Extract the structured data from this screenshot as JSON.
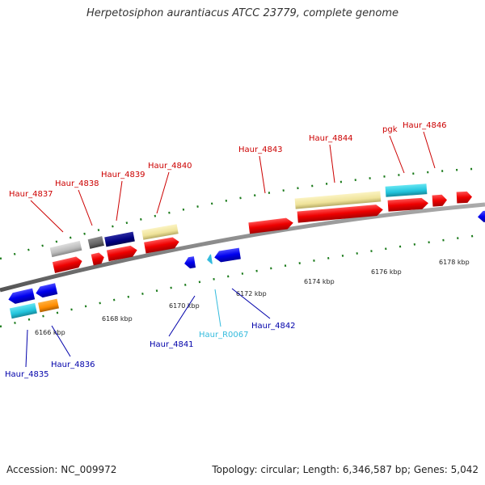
{
  "title": "Herpetosiphon aurantiacus ATCC 23779, complete genome",
  "footer": {
    "accession": "Accession: NC_009972",
    "stats": "Topology: circular; Length: 6,346,587 bp; Genes: 5,042"
  },
  "colors": {
    "forward_label": "#cc0000",
    "reverse_label": "#0000aa",
    "rna_label": "#33bbdd",
    "backbone": "#888888",
    "tick": "#1a7a1a"
  },
  "scale_labels": [
    "6166 kbp",
    "6168 kbp",
    "6170 kbp",
    "6172 kbp",
    "6174 kbp",
    "6176 kbp",
    "6178 kbp"
  ],
  "gene_labels": [
    {
      "text": "Haur_4837",
      "strand": "forward"
    },
    {
      "text": "Haur_4838",
      "strand": "forward"
    },
    {
      "text": "Haur_4839",
      "strand": "forward"
    },
    {
      "text": "Haur_4840",
      "strand": "forward"
    },
    {
      "text": "Haur_4843",
      "strand": "forward"
    },
    {
      "text": "Haur_4844",
      "strand": "forward"
    },
    {
      "text": "pgk",
      "strand": "forward"
    },
    {
      "text": "Haur_4846",
      "strand": "forward"
    },
    {
      "text": "Haur_4835",
      "strand": "reverse"
    },
    {
      "text": "Haur_4836",
      "strand": "reverse"
    },
    {
      "text": "Haur_4841",
      "strand": "reverse"
    },
    {
      "text": "Haur_R0067",
      "strand": "rna"
    },
    {
      "text": "Haur_4842",
      "strand": "reverse"
    }
  ],
  "features": {
    "forward_cog_row": [
      "light-gray",
      "dark-gray",
      "navy",
      "khaki",
      "khaki",
      "cyan"
    ],
    "forward_cds_row": [
      "red",
      "red",
      "red",
      "red",
      "red",
      "red",
      "red",
      "red",
      "red",
      "red"
    ],
    "reverse_row": [
      "blue",
      "blue",
      "cyan-rna",
      "blue",
      "blue",
      "blue",
      "cyan",
      "orange"
    ]
  }
}
